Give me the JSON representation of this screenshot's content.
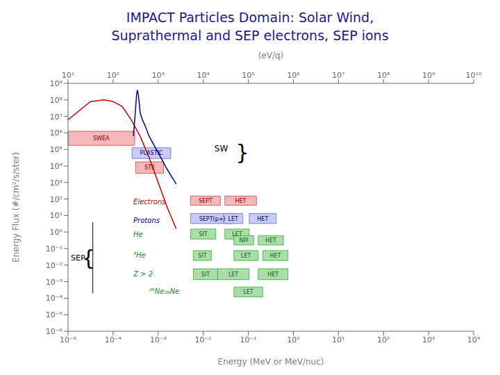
{
  "chart_data": {
    "type": "line",
    "title": "IMPACT Particles Domain: Solar Wind,",
    "subtitle": "Suprathermal and SEP electrons, SEP ions",
    "title_color": "#1a1a8c",
    "xlabel": "Energy (MeV or MeV/nuc)",
    "ylabel": "Energy Flux (#/cm²/s/ster)",
    "top_xlabel": "(eV/q)",
    "log": true,
    "grid": false,
    "xlim": [
      1e-05,
      10000.0
    ],
    "xticks": [
      {
        "value": 1e-05,
        "label": "10⁻⁵"
      },
      {
        "value": 0.0001,
        "label": "10⁻⁴"
      },
      {
        "value": 0.001,
        "label": "10⁻³"
      },
      {
        "value": 0.01,
        "label": "10⁻²"
      },
      {
        "value": 0.1,
        "label": "10⁻¹"
      },
      {
        "value": 1,
        "label": "10⁰"
      },
      {
        "value": 10,
        "label": "10¹"
      },
      {
        "value": 100,
        "label": "10²"
      },
      {
        "value": 1000,
        "label": "10³"
      },
      {
        "value": 10000,
        "label": "10⁴"
      }
    ],
    "top_xlim": [
      10,
      10000000000.0
    ],
    "top_xticks": [
      {
        "value": 10,
        "label": "10¹"
      },
      {
        "value": 100,
        "label": "10²"
      },
      {
        "value": 1000,
        "label": "10³"
      },
      {
        "value": 10000,
        "label": "10⁴"
      },
      {
        "value": 100000,
        "label": "10⁵"
      },
      {
        "value": 1000000.0,
        "label": "10⁶"
      },
      {
        "value": 10000000.0,
        "label": "10⁷"
      },
      {
        "value": 100000000.0,
        "label": "10⁸"
      },
      {
        "value": 1000000000.0,
        "label": "10⁹"
      },
      {
        "value": 10000000000.0,
        "label": "10¹⁰"
      }
    ],
    "ylim": [
      1e-06,
      1000000000.0
    ],
    "yticks": [
      {
        "value": 1e-06,
        "label": "10⁻⁶"
      },
      {
        "value": 1e-05,
        "label": "10⁻⁵"
      },
      {
        "value": 0.0001,
        "label": "10⁻⁴"
      },
      {
        "value": 0.001,
        "label": "10⁻³"
      },
      {
        "value": 0.01,
        "label": "10⁻²"
      },
      {
        "value": 0.1,
        "label": "10⁻¹"
      },
      {
        "value": 1,
        "label": "10⁰"
      },
      {
        "value": 10,
        "label": "10¹"
      },
      {
        "value": 100,
        "label": "10²"
      },
      {
        "value": 1000,
        "label": "10³"
      },
      {
        "value": 10000,
        "label": "10⁴"
      },
      {
        "value": 100000,
        "label": "10⁵"
      },
      {
        "value": 1000000.0,
        "label": "10⁶"
      },
      {
        "value": 10000000.0,
        "label": "10⁷"
      },
      {
        "value": 100000000.0,
        "label": "10⁸"
      },
      {
        "value": 1000000000.0,
        "label": "10⁹"
      }
    ],
    "series": [
      {
        "color": "#cc0000",
        "x": [
          1e-05,
          3.16228e-05,
          6.30957e-05,
          0.0001,
          0.000158489,
          0.000251189,
          0.000398107,
          0.000630957,
          0.001,
          0.00158489,
          0.00251189
        ],
        "values": [
          6309570.0,
          79432800.0,
          100000000.0,
          79432800.0,
          39810700.0,
          6309570.0,
          630957.0,
          31622.8,
          1000,
          31.6228,
          1.58489
        ]
      },
      {
        "color": "#000099",
        "x": [
          0.000281838,
          0.000316228,
          0.000331131,
          0.000346737,
          0.000363078,
          0.000380189,
          0.000398107,
          0.000446684,
          0.000501187,
          0.000630957,
          0.001,
          0.00158489,
          0.00251189
        ],
        "values": [
          630957.0,
          31622800.0,
          199526000.0,
          398107000.0,
          199526000.0,
          63095700.0,
          15848900.0,
          6309570.0,
          3162280.0,
          630957.0,
          63095.7,
          6309.57,
          794.328
        ]
      }
    ],
    "boxes": [
      {
        "label": "SWEA",
        "x1": 1e-05,
        "x2": 0.000301995,
        "y1": 177828.0,
        "y2": 1258930.0,
        "color": "#f5b8b8",
        "edge_color": "#cc4444",
        "label_color": "#880000"
      },
      {
        "label": "PLASTIC",
        "x1": 0.000263027,
        "x2": 0.00190546,
        "y1": 28183.8,
        "y2": 125893.0,
        "color": "#c8ccf5",
        "edge_color": "#6666cc",
        "label_color": "#000066"
      },
      {
        "label": "STE",
        "x1": 0.000316228,
        "x2": 0.00131826,
        "y1": 3548.13,
        "y2": 17782.8,
        "color": "#f5b8b8",
        "edge_color": "#cc4444",
        "label_color": "#880000"
      },
      {
        "label": "SEPT",
        "x1": 0.00524807,
        "x2": 0.0239883,
        "y1": 41.6869,
        "y2": 151.356,
        "color": "#f5b8b8",
        "edge_color": "#cc4444",
        "label_color": "#880000"
      },
      {
        "label": "HET",
        "x1": 0.0301995,
        "x2": 0.151356,
        "y1": 41.6869,
        "y2": 151.356,
        "color": "#f5b8b8",
        "edge_color": "#cc4444",
        "label_color": "#880000"
      },
      {
        "label": "SEPT(p+)",
        "x1": 0.00524807,
        "x2": 0.047863,
        "y1": 3.31131,
        "y2": 13.1826,
        "color": "#c8ccf5",
        "edge_color": "#6666cc",
        "label_color": "#000066"
      },
      {
        "label": "LET",
        "x1": 0.0281838,
        "x2": 0.0758578,
        "y1": 3.31131,
        "y2": 13.1826,
        "color": "#c8ccf5",
        "edge_color": "#6666cc",
        "label_color": "#000066"
      },
      {
        "label": "HET",
        "x1": 0.104713,
        "x2": 0.416869,
        "y1": 3.31131,
        "y2": 13.1826,
        "color": "#c8ccf5",
        "edge_color": "#6666cc",
        "label_color": "#000066"
      },
      {
        "label": "SIT",
        "x1": 0.00524807,
        "x2": 0.0190546,
        "y1": 0.380189,
        "y2": 1.51356,
        "color": "#aaddaa",
        "edge_color": "#33aa33",
        "label_color": "#116611"
      },
      {
        "label": "LET",
        "x1": 0.0301995,
        "x2": 0.104713,
        "y1": 0.380189,
        "y2": 1.51356,
        "color": "#aaddaa",
        "edge_color": "#33aa33",
        "label_color": "#116611"
      },
      {
        "label": "NPI",
        "x1": 0.047863,
        "x2": 0.131826,
        "y1": 0.165959,
        "y2": 0.60256,
        "color": "#aaddaa",
        "edge_color": "#33aa33",
        "label_color": "#116611"
      },
      {
        "label": "HET",
        "x1": 0.165959,
        "x2": 0.60256,
        "y1": 0.165959,
        "y2": 0.60256,
        "color": "#aaddaa",
        "edge_color": "#33aa33",
        "label_color": "#116611"
      },
      {
        "label": "SIT",
        "x1": 0.0060256,
        "x2": 0.0151356,
        "y1": 0.0190546,
        "y2": 0.0758578,
        "color": "#aaddaa",
        "edge_color": "#33aa33",
        "label_color": "#116611"
      },
      {
        "label": "LET",
        "x1": 0.047863,
        "x2": 0.165959,
        "y1": 0.0190546,
        "y2": 0.0758578,
        "color": "#aaddaa",
        "edge_color": "#33aa33",
        "label_color": "#116611"
      },
      {
        "label": "HET",
        "x1": 0.20893,
        "x2": 0.758578,
        "y1": 0.0190546,
        "y2": 0.0758578,
        "color": "#aaddaa",
        "edge_color": "#33aa33",
        "label_color": "#116611"
      },
      {
        "label": "SIT",
        "x1": 0.0060256,
        "x2": 0.020893,
        "y1": 0.00131826,
        "y2": 0.0060256,
        "color": "#aaddaa",
        "edge_color": "#33aa33",
        "label_color": "#116611"
      },
      {
        "label": "LET",
        "x1": 0.020893,
        "x2": 0.104713,
        "y1": 0.00131826,
        "y2": 0.0060256,
        "color": "#aaddaa",
        "edge_color": "#33aa33",
        "label_color": "#116611"
      },
      {
        "label": "HET",
        "x1": 0.165959,
        "x2": 0.758578,
        "y1": 0.00131826,
        "y2": 0.0060256,
        "color": "#aaddaa",
        "edge_color": "#33aa33",
        "label_color": "#116611"
      },
      {
        "label": "LET",
        "x1": 0.047863,
        "x2": 0.20893,
        "y1": 0.000120226,
        "y2": 0.00047863,
        "color": "#aaddaa",
        "edge_color": "#33aa33",
        "label_color": "#116611"
      }
    ],
    "species_labels": [
      {
        "text": "Electrons",
        "x": 0.000281838,
        "y": 70.7946,
        "color": "#cc0000"
      },
      {
        "text": "Protons",
        "x": 0.000281838,
        "y": 5.24807,
        "color": "#000099"
      },
      {
        "text": "He",
        "x": 0.000281838,
        "y": 0.758578,
        "color": "#228822"
      },
      {
        "text": "³He",
        "x": 0.000281838,
        "y": 0.0416869,
        "color": "#228822"
      },
      {
        "text": "Z > 2",
        "x": 0.000281838,
        "y": 0.00301995,
        "color": "#228822"
      },
      {
        "text": "²⁵Ne₂₆Ne",
        "x": 0.000630957,
        "y": 0.000263027,
        "color": "#228822"
      }
    ],
    "sw_label": {
      "text": "SW",
      "x": 0.0354813,
      "y": 112202
    },
    "sep_label": {
      "text": "SEP",
      "x": 2.39883e-05,
      "y": 0.0281838
    },
    "sep_brace": {
      "text": "{",
      "x": 3.98107e-05,
      "y": 0.0281838,
      "line_x": 3.54813e-05,
      "line_y": [
        3.98107,
        0.000199526
      ]
    },
    "sw_brace": {
      "text": "}",
      "x": 0.0524807,
      "y": 68391.2
    }
  }
}
